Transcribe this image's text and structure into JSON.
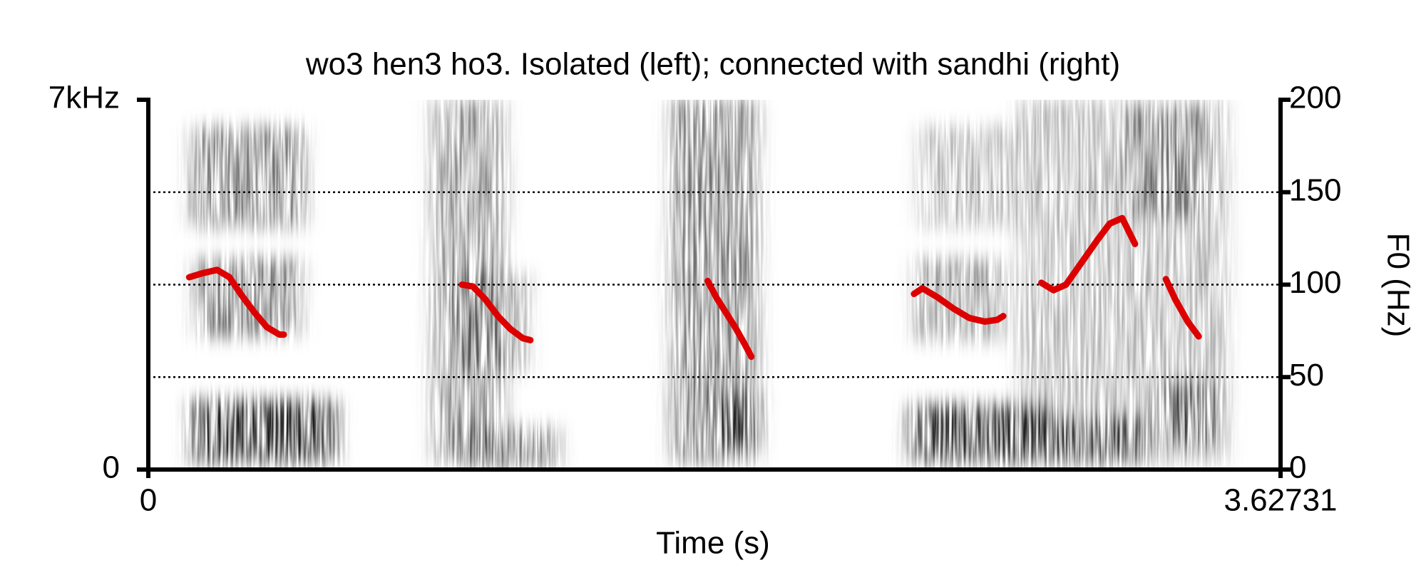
{
  "chart_data": {
    "type": "line",
    "title": "wo3 hen3 ho3. Isolated (left); connected with sandhi (right)",
    "xlabel": "Time (s)",
    "y2label": "F0 (Hz)",
    "xlim": [
      0,
      3.62731
    ],
    "xticks": [
      0,
      3.62731
    ],
    "ylim": [
      0,
      7
    ],
    "yticks": [
      0,
      {
        "value": 7,
        "label": "7kHz"
      }
    ],
    "y2lim": [
      0,
      200
    ],
    "y2ticks": [
      0,
      50,
      100,
      150,
      200
    ],
    "grid": true,
    "series": [
      {
        "color": "#dd0000",
        "axis": "y2",
        "x": [
          0.131,
          0.17,
          0.22,
          0.26,
          0.3,
          0.34,
          0.38,
          0.42,
          0.434
        ],
        "values": [
          104,
          106,
          108,
          104,
          94,
          85,
          77,
          73,
          73
        ]
      },
      {
        "color": "#dd0000",
        "axis": "y2",
        "x": [
          1.005,
          1.04,
          1.08,
          1.12,
          1.16,
          1.2,
          1.224
        ],
        "values": [
          100,
          99,
          92,
          83,
          76,
          71,
          70
        ]
      },
      {
        "color": "#dd0000",
        "axis": "y2",
        "x": [
          1.792,
          1.82,
          1.85,
          1.88,
          1.91,
          1.932
        ],
        "values": [
          102,
          93,
          85,
          77,
          68,
          61
        ]
      },
      {
        "color": "#dd0000",
        "axis": "y2",
        "x": [
          2.453,
          2.48,
          2.53,
          2.58,
          2.63,
          2.68,
          2.72,
          2.739
        ],
        "values": [
          95,
          98,
          93,
          87,
          82,
          80,
          81,
          83
        ]
      },
      {
        "color": "#dd0000",
        "axis": "y2",
        "x": [
          2.861,
          2.9,
          2.94,
          2.99,
          3.04,
          3.08,
          3.12,
          3.161
        ],
        "values": [
          101,
          97,
          100,
          112,
          124,
          133,
          136,
          122
        ]
      },
      {
        "color": "#dd0000",
        "axis": "y2",
        "x": [
          3.26,
          3.29,
          3.33,
          3.365
        ],
        "values": [
          103,
          92,
          80,
          72
        ]
      }
    ]
  }
}
